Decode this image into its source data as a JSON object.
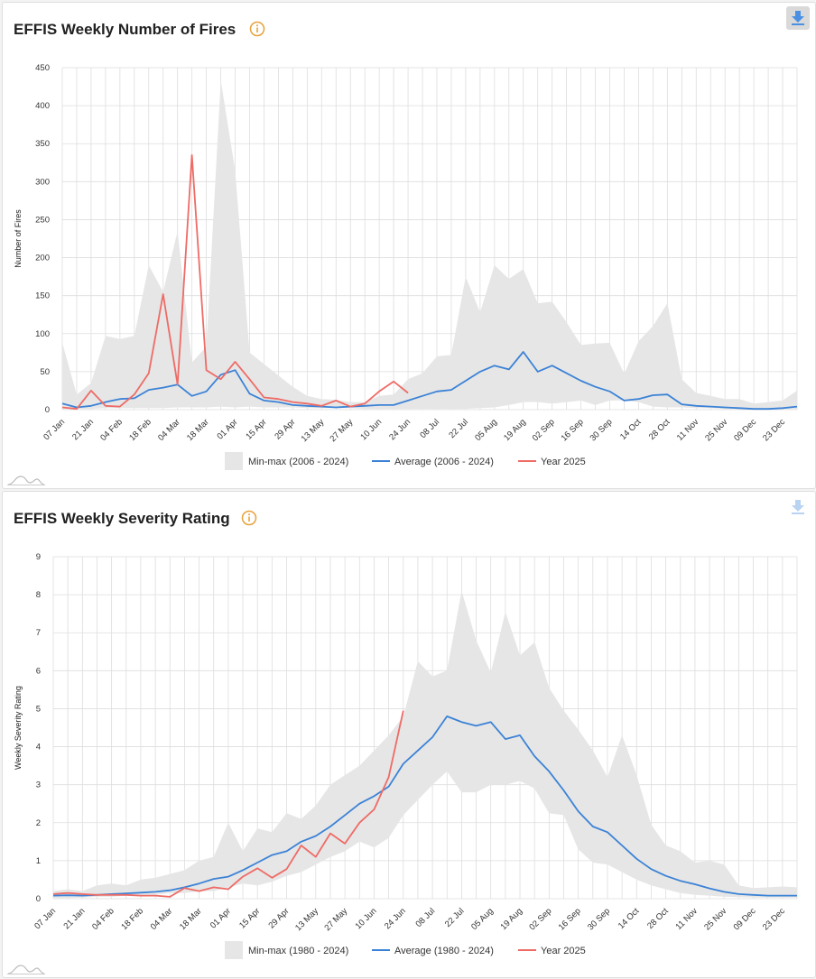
{
  "panels": [
    {
      "title": "EFFIS Weekly Number of Fires",
      "download_active": true
    },
    {
      "title": "EFFIS Weekly Severity Rating",
      "download_active": false
    }
  ],
  "colors": {
    "band": "#e6e6e6",
    "average": "#3b82d6",
    "year": "#ee6b66",
    "grid": "#dddddd",
    "info": "#e8a13a",
    "download": "#4a90e2"
  },
  "chart_data": [
    {
      "type": "line",
      "title": "EFFIS Weekly Number of Fires",
      "ylabel": "Number of Fires",
      "xlabel": "",
      "ylim": [
        0,
        450
      ],
      "yticks": [
        0,
        50,
        100,
        150,
        200,
        250,
        300,
        350,
        400,
        450
      ],
      "xtick_labels": [
        "07 Jan",
        "21 Jan",
        "04 Feb",
        "18 Feb",
        "04 Mar",
        "18 Mar",
        "01 Apr",
        "15 Apr",
        "29 Apr",
        "13 May",
        "27 May",
        "10 Jun",
        "24 Jun",
        "08 Jul",
        "22 Jul",
        "05 Aug",
        "19 Aug",
        "02 Sep",
        "16 Sep",
        "30 Sep",
        "14 Oct",
        "28 Oct",
        "11 Nov",
        "25 Nov",
        "09 Dec",
        "23 Dec"
      ],
      "grid": true,
      "legend": "bottom",
      "series": [
        {
          "name": "Min-max (2006 - 2024)",
          "kind": "band",
          "min": [
            1,
            1,
            1,
            2,
            2,
            2,
            2,
            2,
            3,
            3,
            3,
            4,
            3,
            4,
            3,
            3,
            3,
            2,
            2,
            2,
            2,
            1,
            1,
            1,
            1,
            1,
            1,
            1,
            1,
            2,
            3,
            6,
            10,
            10,
            8,
            10,
            12,
            6,
            12,
            12,
            10,
            4,
            3,
            3,
            2,
            2,
            1,
            1,
            1,
            1,
            1,
            1
          ],
          "max": [
            88,
            20,
            35,
            97,
            93,
            97,
            190,
            155,
            235,
            62,
            83,
            433,
            315,
            75,
            60,
            45,
            30,
            18,
            14,
            13,
            10,
            10,
            18,
            20,
            40,
            48,
            70,
            72,
            175,
            128,
            190,
            172,
            185,
            140,
            142,
            115,
            85,
            87,
            88,
            47,
            90,
            110,
            140,
            40,
            22,
            18,
            14,
            14,
            8,
            10,
            12,
            25
          ]
        },
        {
          "name": "Average (2006 - 2024)",
          "kind": "line",
          "values": [
            8,
            3,
            5,
            10,
            14,
            15,
            26,
            29,
            33,
            18,
            24,
            46,
            52,
            21,
            12,
            10,
            6,
            5,
            4,
            3,
            4,
            5,
            6,
            6,
            12,
            18,
            24,
            26,
            38,
            50,
            58,
            53,
            76,
            50,
            58,
            48,
            38,
            30,
            24,
            12,
            14,
            19,
            20,
            7,
            5,
            4,
            3,
            2,
            1,
            1,
            2,
            4
          ]
        },
        {
          "name": "Year 2025",
          "kind": "line",
          "values": [
            3,
            1,
            25,
            5,
            4,
            20,
            48,
            152,
            33,
            335,
            52,
            40,
            63,
            40,
            16,
            14,
            10,
            8,
            5,
            12,
            4,
            8,
            24,
            37,
            22
          ]
        }
      ]
    },
    {
      "type": "line",
      "title": "EFFIS Weekly Severity Rating",
      "ylabel": "Weekly Severity Rating",
      "xlabel": "",
      "ylim": [
        0,
        9
      ],
      "yticks": [
        0,
        1,
        2,
        3,
        4,
        5,
        6,
        7,
        8,
        9
      ],
      "xtick_labels": [
        "07 Jan",
        "21 Jan",
        "04 Feb",
        "18 Feb",
        "04 Mar",
        "18 Mar",
        "01 Apr",
        "15 Apr",
        "29 Apr",
        "13 May",
        "27 May",
        "10 Jun",
        "24 Jun",
        "08 Jul",
        "22 Jul",
        "05 Aug",
        "19 Aug",
        "02 Sep",
        "16 Sep",
        "30 Sep",
        "14 Oct",
        "28 Oct",
        "11 Nov",
        "25 Nov",
        "09 Dec",
        "23 Dec"
      ],
      "grid": true,
      "legend": "bottom",
      "series": [
        {
          "name": "Min-max (1980 - 2024)",
          "kind": "band",
          "min": [
            0.02,
            0.02,
            0.03,
            0.05,
            0.05,
            0.08,
            0.1,
            0.1,
            0.15,
            0.15,
            0.2,
            0.2,
            0.3,
            0.4,
            0.35,
            0.45,
            0.6,
            0.7,
            0.9,
            1.1,
            1.25,
            1.5,
            1.35,
            1.6,
            2.2,
            2.6,
            3.0,
            3.35,
            2.8,
            2.8,
            3.0,
            3.0,
            3.1,
            2.9,
            2.25,
            2.2,
            1.3,
            0.95,
            0.9,
            0.7,
            0.5,
            0.35,
            0.25,
            0.15,
            0.1,
            0.08,
            0.05,
            0.04,
            0.03,
            0.03,
            0.03,
            0.03
          ],
          "max": [
            0.2,
            0.25,
            0.2,
            0.35,
            0.4,
            0.35,
            0.5,
            0.55,
            0.65,
            0.75,
            1.0,
            1.1,
            2.0,
            1.25,
            1.85,
            1.75,
            2.25,
            2.1,
            2.45,
            3.0,
            3.25,
            3.5,
            3.9,
            4.3,
            4.8,
            6.25,
            5.85,
            6.0,
            8.1,
            6.8,
            5.95,
            7.55,
            6.4,
            6.75,
            5.55,
            4.95,
            4.45,
            3.9,
            3.2,
            4.3,
            3.25,
            1.95,
            1.4,
            1.25,
            0.95,
            1.0,
            0.9,
            0.35,
            0.28,
            0.3,
            0.32,
            0.3
          ]
        },
        {
          "name": "Average (1980 - 2024)",
          "kind": "line",
          "values": [
            0.08,
            0.09,
            0.08,
            0.1,
            0.12,
            0.14,
            0.16,
            0.18,
            0.22,
            0.3,
            0.4,
            0.52,
            0.58,
            0.75,
            0.95,
            1.15,
            1.25,
            1.5,
            1.65,
            1.9,
            2.2,
            2.5,
            2.7,
            2.95,
            3.55,
            3.9,
            4.25,
            4.8,
            4.65,
            4.55,
            4.65,
            4.2,
            4.3,
            3.75,
            3.35,
            2.85,
            2.3,
            1.9,
            1.75,
            1.4,
            1.05,
            0.78,
            0.6,
            0.47,
            0.38,
            0.27,
            0.18,
            0.12,
            0.1,
            0.08,
            0.08,
            0.08
          ]
        },
        {
          "name": "Year 2025",
          "kind": "line",
          "values": [
            0.12,
            0.15,
            0.12,
            0.1,
            0.1,
            0.1,
            0.08,
            0.08,
            0.05,
            0.28,
            0.2,
            0.3,
            0.25,
            0.58,
            0.8,
            0.55,
            0.78,
            1.4,
            1.1,
            1.72,
            1.45,
            2.0,
            2.35,
            3.2,
            4.95
          ]
        }
      ]
    }
  ]
}
